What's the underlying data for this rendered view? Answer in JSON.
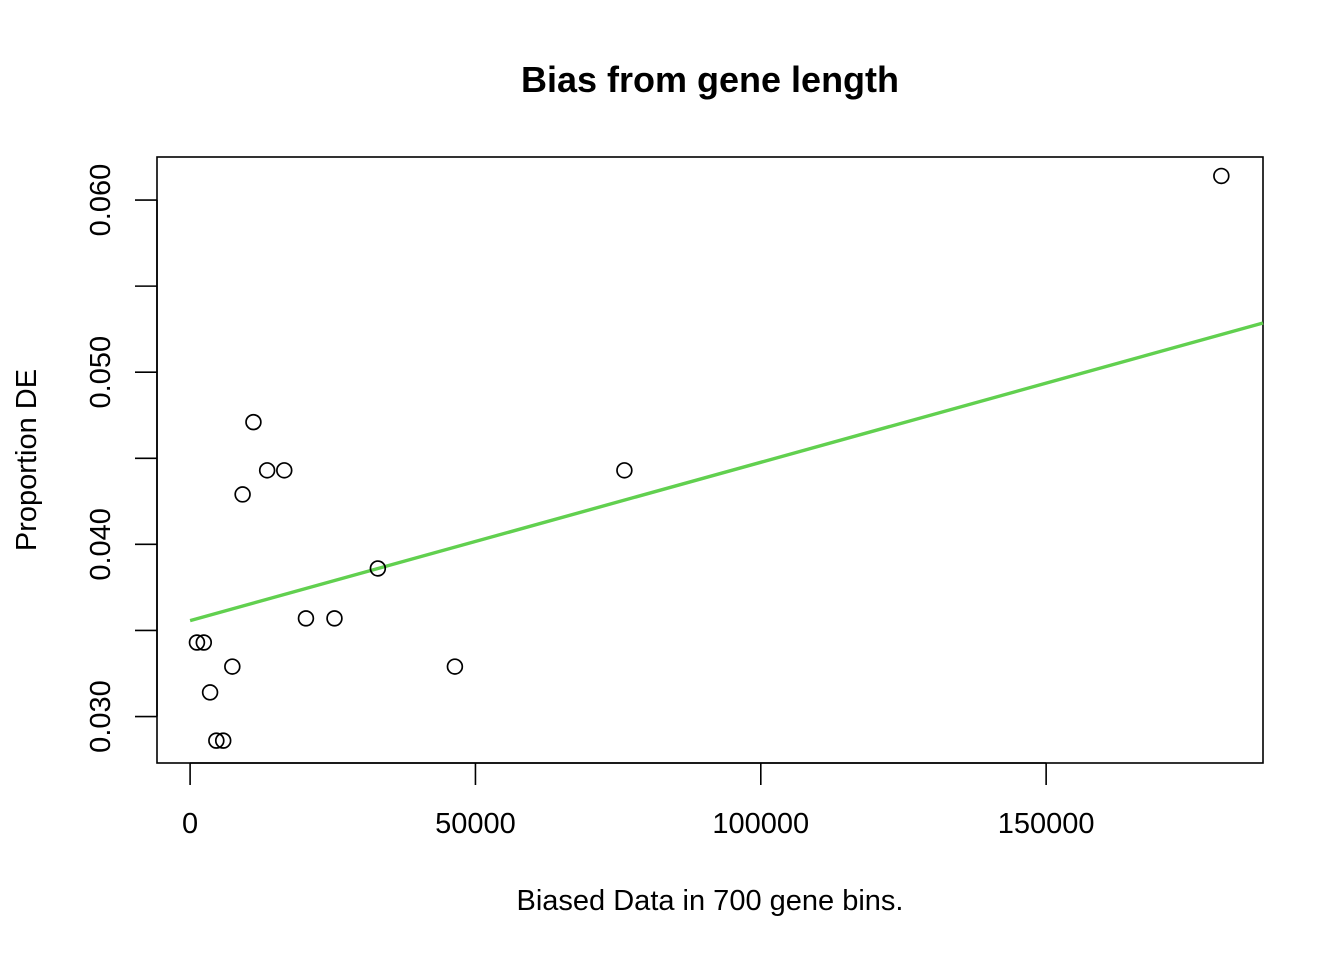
{
  "chart_data": {
    "type": "scatter",
    "title": "Bias from gene length",
    "xlabel": "Biased Data in 700 gene bins.",
    "ylabel": "Proportion DE",
    "xlim": [
      -5800,
      188000
    ],
    "ylim": [
      0.0273,
      0.0625
    ],
    "x_ticks": [
      0,
      50000,
      100000,
      150000
    ],
    "x_tick_labels": [
      "0",
      "50000",
      "100000",
      "150000"
    ],
    "y_ticks": [
      0.03,
      0.035,
      0.04,
      0.045,
      0.05,
      0.055,
      0.06
    ],
    "y_tick_labels": [
      "0.030",
      "",
      "0.040",
      "",
      "0.050",
      "",
      "0.060"
    ],
    "grid": false,
    "legend": "none",
    "series": [
      {
        "marker": "open-circle",
        "color": "#000000",
        "points": [
          {
            "x": 1200,
            "y": 0.0343
          },
          {
            "x": 2400,
            "y": 0.0343
          },
          {
            "x": 3500,
            "y": 0.0314
          },
          {
            "x": 4600,
            "y": 0.0286
          },
          {
            "x": 5800,
            "y": 0.0286
          },
          {
            "x": 7400,
            "y": 0.0329
          },
          {
            "x": 9200,
            "y": 0.0429
          },
          {
            "x": 11100,
            "y": 0.0471
          },
          {
            "x": 13500,
            "y": 0.0443
          },
          {
            "x": 16500,
            "y": 0.0443
          },
          {
            "x": 20300,
            "y": 0.0357
          },
          {
            "x": 25300,
            "y": 0.0357
          },
          {
            "x": 32900,
            "y": 0.0386
          },
          {
            "x": 46400,
            "y": 0.0329
          },
          {
            "x": 76100,
            "y": 0.0443
          },
          {
            "x": 180700,
            "y": 0.0614
          }
        ]
      }
    ],
    "fit_line": {
      "color": "#61d04f",
      "x": [
        0,
        188000
      ],
      "y": [
        0.03557,
        0.05286
      ]
    }
  }
}
